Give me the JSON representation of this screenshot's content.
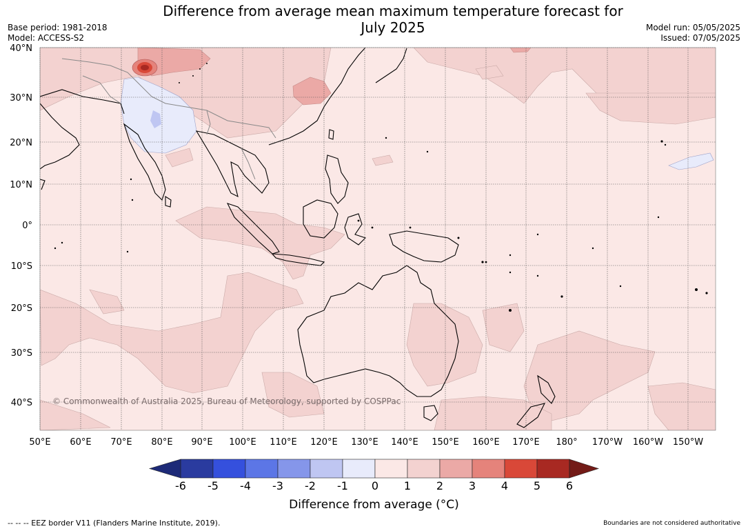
{
  "header": {
    "title_line1": "Difference from average mean maximum temperature forecast for",
    "title_line2": "July 2025",
    "base_period": "Base period: 1981-2018",
    "model": "Model: ACCESS-S2",
    "model_run": "Model run: 05/05/2025",
    "issued": "Issued: 07/05/2025"
  },
  "map": {
    "lat_labels": [
      "40°N",
      "30°N",
      "20°N",
      "10°N",
      "0°",
      "10°S",
      "20°S",
      "30°S",
      "40°S"
    ],
    "lon_labels": [
      "50°E",
      "60°E",
      "70°E",
      "80°E",
      "90°E",
      "100°E",
      "110°E",
      "120°E",
      "130°E",
      "140°E",
      "150°E",
      "160°E",
      "170°E",
      "180°",
      "170°W",
      "160°W",
      "150°W"
    ],
    "copyright": "© Commonwealth of Australia 2025, Bureau of Meteorology, supported by COSPPac",
    "background_color": "#fbe8e6"
  },
  "colorbar": {
    "ticks": [
      "-6",
      "-5",
      "-4",
      "-3",
      "-2",
      "-1",
      "0",
      "1",
      "2",
      "3",
      "4",
      "5",
      "6"
    ],
    "colors": [
      "#2a3b9f",
      "#3550dd",
      "#5c76e6",
      "#8596ea",
      "#bfc6f2",
      "#e8ebfb",
      "#fbe8e6",
      "#f3d2d0",
      "#eba9a6",
      "#e5837b",
      "#d94838",
      "#a82922"
    ],
    "under_color": "#1d2a78",
    "over_color": "#731b17",
    "title": "Difference from average (°C)"
  },
  "footer": {
    "eez_note": "--  --  -- EEZ border V11 (Flanders Marine Institute, 2019).",
    "disclaimer": "Boundaries are not considered authoritative"
  }
}
